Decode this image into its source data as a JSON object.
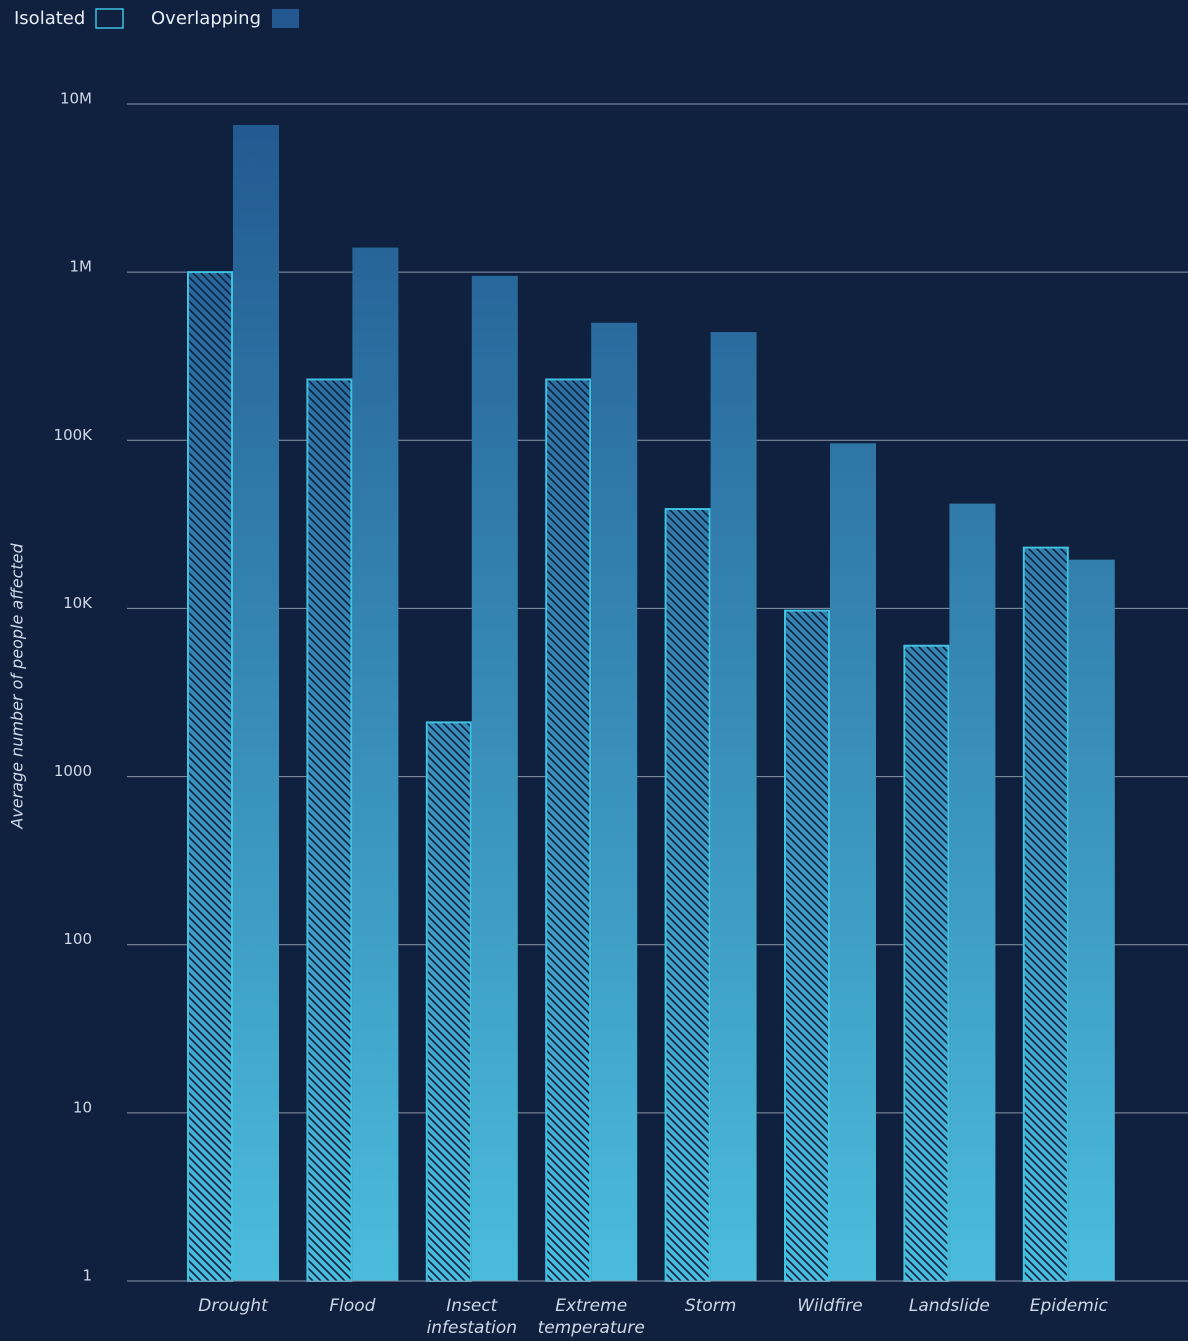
{
  "chart_data": {
    "type": "bar",
    "y_label": "Average number of people affected",
    "categories": [
      "Drought",
      "Flood",
      "Insect infestation",
      "Extreme temperature",
      "Storm",
      "Wildfire",
      "Landslide",
      "Epidemic"
    ],
    "series": [
      {
        "name": "Isolated",
        "color": "#3fc1e0",
        "values": [
          1000000,
          230000,
          2100,
          230000,
          39000,
          9700,
          6000,
          23000
        ]
      },
      {
        "name": "Overlapping",
        "color": "#2a7ab0",
        "values": [
          7500000,
          1400000,
          950000,
          500000,
          440000,
          96000,
          42000,
          19500
        ]
      }
    ],
    "log_scale": true,
    "grid": true,
    "ylim": [
      1,
      10000000
    ],
    "yticks": [
      1,
      10,
      100,
      1000,
      {
        "value": 10000,
        "label": "10K"
      },
      {
        "value": 100000,
        "label": "100K"
      },
      {
        "value": 1000000,
        "label": "1M"
      },
      {
        "value": 10000000,
        "label": "10M"
      }
    ]
  }
}
